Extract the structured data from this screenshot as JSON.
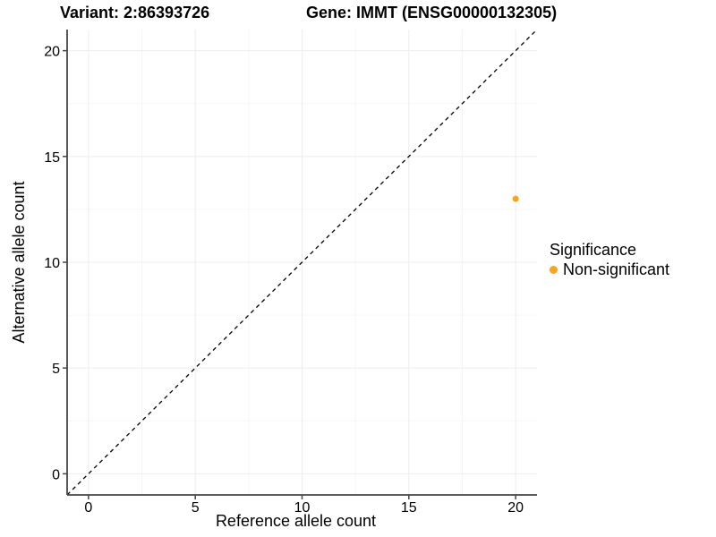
{
  "titles": {
    "variant": "Variant: 2:86393726",
    "gene": "Gene: IMMT (ENSG00000132305)"
  },
  "legend": {
    "title": "Significance",
    "items": [
      {
        "label": "Non-significant",
        "color": "#FBA31C"
      }
    ]
  },
  "chart_data": {
    "type": "scatter",
    "title": "Variant: 2:86393726",
    "subtitle": "Gene: IMMT (ENSG00000132305)",
    "xlabel": "Reference allele count",
    "ylabel": "Alternative allele count",
    "xlim": [
      -1,
      21
    ],
    "ylim": [
      -1,
      21
    ],
    "x_ticks": [
      0,
      5,
      10,
      15,
      20
    ],
    "y_ticks": [
      0,
      5,
      10,
      15,
      20
    ],
    "x_minor_ticks": [
      2.5,
      7.5,
      12.5,
      17.5
    ],
    "y_minor_ticks": [
      2.5,
      7.5,
      12.5,
      17.5
    ],
    "grid": "major+minor",
    "legend_position": "right",
    "series": [
      {
        "name": "Non-significant",
        "color": "#FBA31C",
        "marker": "circle",
        "points": [
          {
            "x": 20,
            "y": 13
          }
        ]
      }
    ],
    "reference_line": {
      "kind": "identity",
      "slope": 1,
      "intercept": 0,
      "style": "dashed",
      "color": "#000000"
    }
  },
  "colors": {
    "background": "#FFFFFF",
    "axis_line": "#464646",
    "grid_major": "#EDEDED",
    "grid_minor": "#F6F6F6",
    "text": "#000000"
  }
}
